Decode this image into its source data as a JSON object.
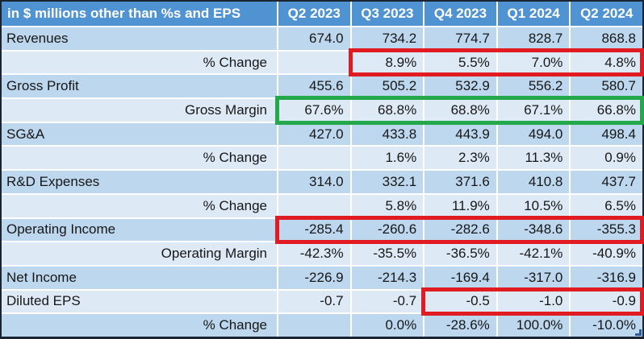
{
  "chart_data": {
    "type": "table",
    "title": "in $ millions other than %s and EPS",
    "columns": [
      "Q2 2023",
      "Q3 2023",
      "Q4 2023",
      "Q1 2024",
      "Q2 2024"
    ],
    "rows": [
      {
        "label": "Revenues",
        "sub": false,
        "values": [
          "674.0",
          "734.2",
          "774.7",
          "828.7",
          "868.8"
        ]
      },
      {
        "label": "% Change",
        "sub": true,
        "values": [
          "",
          "8.9%",
          "5.5%",
          "7.0%",
          "4.8%"
        ]
      },
      {
        "label": "Gross Profit",
        "sub": false,
        "values": [
          "455.6",
          "505.2",
          "532.9",
          "556.2",
          "580.7"
        ]
      },
      {
        "label": "Gross Margin",
        "sub": true,
        "values": [
          "67.6%",
          "68.8%",
          "68.8%",
          "67.1%",
          "66.8%"
        ]
      },
      {
        "label": "SG&A",
        "sub": false,
        "values": [
          "427.0",
          "433.8",
          "443.9",
          "494.0",
          "498.4"
        ]
      },
      {
        "label": "% Change",
        "sub": true,
        "values": [
          "",
          "1.6%",
          "2.3%",
          "11.3%",
          "0.9%"
        ]
      },
      {
        "label": "R&D Expenses",
        "sub": false,
        "values": [
          "314.0",
          "332.1",
          "371.6",
          "410.8",
          "437.7"
        ]
      },
      {
        "label": "% Change",
        "sub": true,
        "values": [
          "",
          "5.8%",
          "11.9%",
          "10.5%",
          "6.5%"
        ]
      },
      {
        "label": "Operating Income",
        "sub": false,
        "values": [
          "-285.4",
          "-260.6",
          "-282.6",
          "-348.6",
          "-355.3"
        ]
      },
      {
        "label": "Operating Margin",
        "sub": true,
        "values": [
          "-42.3%",
          "-35.5%",
          "-36.5%",
          "-42.1%",
          "-40.9%"
        ]
      },
      {
        "label": "Net Income",
        "sub": false,
        "values": [
          "-226.9",
          "-214.3",
          "-169.4",
          "-317.0",
          "-316.9"
        ]
      },
      {
        "label": "Diluted EPS",
        "sub": false,
        "values": [
          "-0.7",
          "-0.7",
          "-0.5",
          "-1.0",
          "-0.9"
        ]
      },
      {
        "label": "% Change",
        "sub": true,
        "values": [
          "",
          "0.0%",
          "-28.6%",
          "100.0%",
          "-10.0%"
        ]
      }
    ]
  },
  "highlights": [
    {
      "name": "revenue-pct-change-red-box",
      "row": 1,
      "col_start": 1,
      "color": "#e11b22"
    },
    {
      "name": "gross-margin-green-box",
      "row": 3,
      "col_start": 0,
      "color": "#23a84c"
    },
    {
      "name": "operating-income-red-box",
      "row": 8,
      "col_start": 0,
      "color": "#e11b22"
    },
    {
      "name": "diluted-eps-red-box",
      "row": 11,
      "col_start": 2,
      "color": "#e11b22"
    }
  ],
  "colors": {
    "header_bg": "#5093d2",
    "band_dark": "#bdd7ee",
    "band_light": "#dde9f5",
    "border_dark": "#1a2430",
    "text_dark": "#171717",
    "red_box": "#e11b22",
    "green_box": "#23a84c",
    "handle_blue": "#2f5b9c"
  }
}
